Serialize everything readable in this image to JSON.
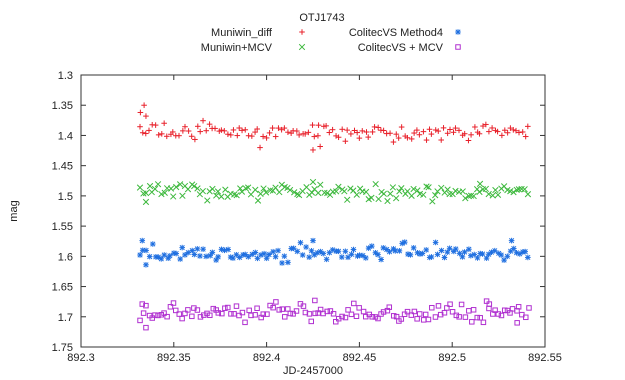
{
  "chart_data": {
    "type": "scatter",
    "title": "OTJ1743",
    "xlabel": "JD-2457000",
    "ylabel": "mag",
    "xlim": [
      892.3,
      892.55
    ],
    "ylim": [
      1.3,
      1.75
    ],
    "y_inverted": true,
    "grid": false,
    "legend_position": "top",
    "x_ticks": [
      892.3,
      892.35,
      892.4,
      892.45,
      892.5,
      892.55
    ],
    "x_tick_labels": [
      "892.3",
      "892.35",
      "892.4",
      "892.45",
      "892.5",
      "892.55"
    ],
    "y_ticks": [
      1.3,
      1.35,
      1.4,
      1.45,
      1.5,
      1.55,
      1.6,
      1.65,
      1.7,
      1.75
    ],
    "y_tick_labels": [
      "1.3",
      "1.35",
      "1.4",
      "1.45",
      "1.5",
      "1.55",
      "1.6",
      "1.65",
      "1.7",
      "1.75"
    ],
    "x_start": 892.332,
    "x_end": 892.541,
    "point_count": 130,
    "series": [
      {
        "name": "Muniwin_diff",
        "marker": "plus",
        "color": "#e8202a",
        "mean": 1.392,
        "scatter": 0.007,
        "trend": 0.005,
        "seed": 11,
        "highlights": [
          {
            "x": 892.332,
            "y": 1.362
          },
          {
            "x": 892.334,
            "y": 1.35
          },
          {
            "x": 892.335,
            "y": 1.368
          },
          {
            "x": 892.425,
            "y": 1.424
          },
          {
            "x": 892.428,
            "y": 1.383
          }
        ]
      },
      {
        "name": "Muniwin+MCV",
        "marker": "cross",
        "color": "#3cb83c",
        "mean": 1.494,
        "scatter": 0.006,
        "trend": 0,
        "seed": 23,
        "highlights": [
          {
            "x": 892.335,
            "y": 1.51
          },
          {
            "x": 892.425,
            "y": 1.477
          },
          {
            "x": 892.515,
            "y": 1.48
          }
        ]
      },
      {
        "name": "ColitecVS Method4",
        "marker": "star",
        "color": "#1f6fe0",
        "mean": 1.594,
        "scatter": 0.007,
        "trend": 0,
        "seed": 37,
        "highlights": [
          {
            "x": 892.333,
            "y": 1.574
          },
          {
            "x": 892.335,
            "y": 1.614
          },
          {
            "x": 892.425,
            "y": 1.574
          },
          {
            "x": 892.532,
            "y": 1.574
          }
        ]
      },
      {
        "name": "ColitecVS + MCV",
        "marker": "square",
        "color": "#b030d0",
        "mean": 1.694,
        "scatter": 0.007,
        "trend": 0,
        "seed": 53,
        "highlights": [
          {
            "x": 892.333,
            "y": 1.679
          },
          {
            "x": 892.335,
            "y": 1.718
          },
          {
            "x": 892.426,
            "y": 1.673
          },
          {
            "x": 892.52,
            "y": 1.679
          },
          {
            "x": 892.535,
            "y": 1.71
          }
        ]
      }
    ]
  }
}
